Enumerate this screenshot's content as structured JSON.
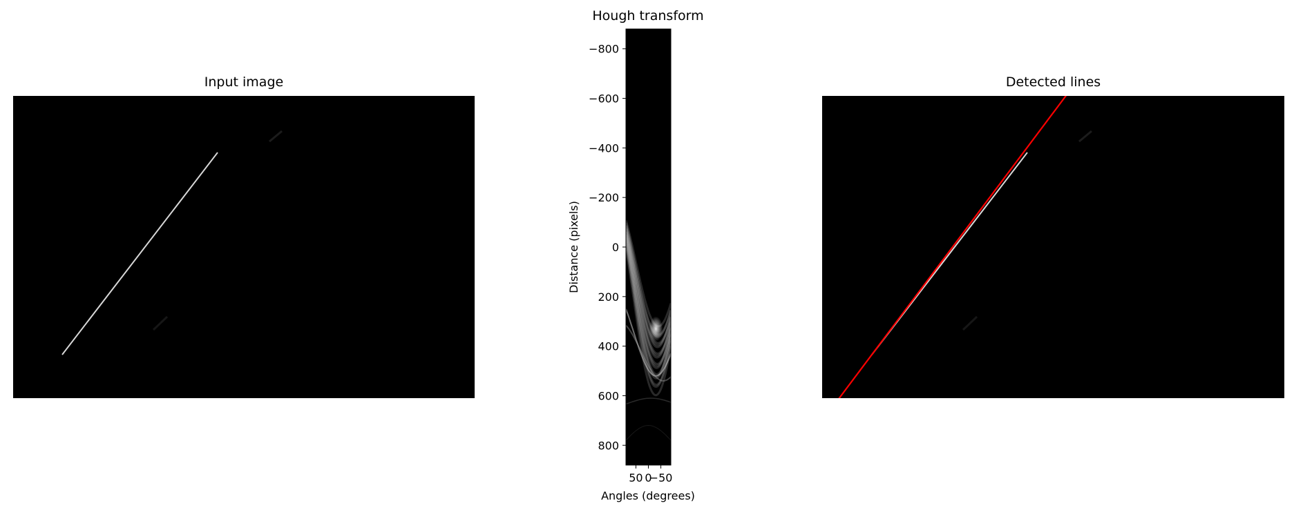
{
  "figure": {
    "panels": [
      {
        "id": "input",
        "title": "Input image"
      },
      {
        "id": "hough",
        "title": "Hough transform"
      },
      {
        "id": "detected",
        "title": "Detected lines"
      }
    ]
  },
  "chart_data": [
    {
      "type": "image",
      "title": "Input image",
      "content": "single bright diagonal line segment on black background",
      "colors": {
        "background": "#000000",
        "line": "#d8d8d8"
      }
    },
    {
      "type": "heatmap",
      "title": "Hough transform",
      "xlabel": "Angles (degrees)",
      "ylabel": "Distance (pixels)",
      "xlim": [
        90,
        -90
      ],
      "ylim": [
        -880,
        880
      ],
      "x_ticks": [
        50,
        0,
        -50
      ],
      "x_tick_labels": [
        "50",
        "0",
        "−50"
      ],
      "y_ticks": [
        -800,
        -600,
        -400,
        -200,
        0,
        200,
        400,
        600,
        800
      ],
      "y_tick_labels": [
        "−800",
        "−600",
        "−400",
        "−200",
        "0",
        "200",
        "400",
        "600",
        "800"
      ],
      "colormap": "gray"
    },
    {
      "type": "image",
      "title": "Detected lines",
      "content": "input image with detected line overlaid in red",
      "colors": {
        "background": "#000000",
        "line": "#d8d8d8",
        "detected_line": "#ff0000"
      }
    }
  ]
}
